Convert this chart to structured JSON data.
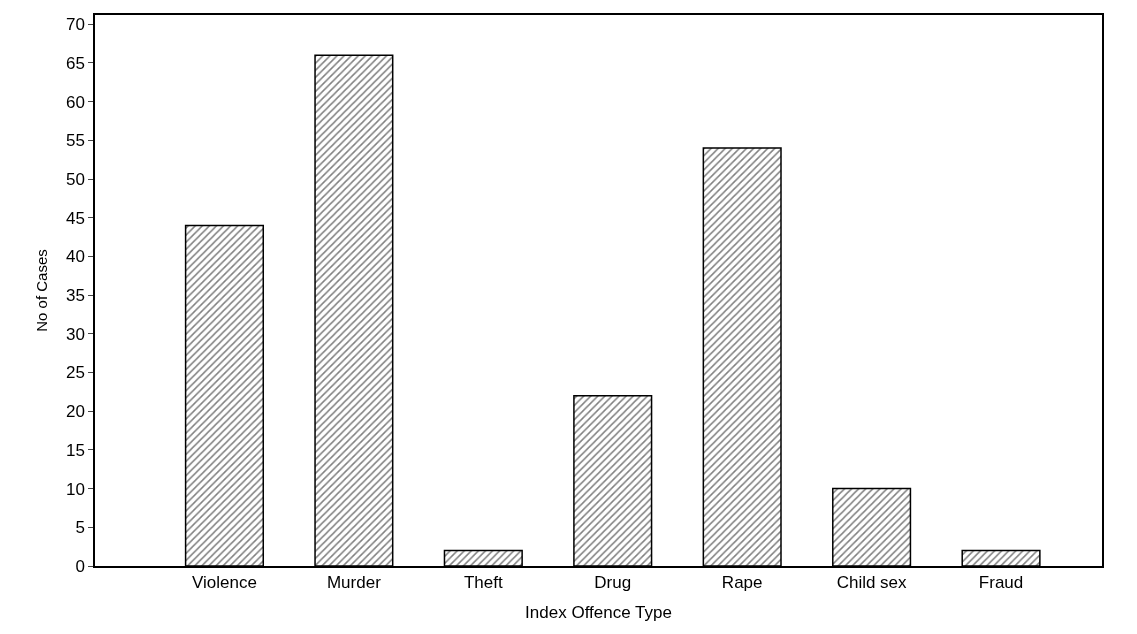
{
  "chart_data": {
    "type": "bar",
    "xlabel": "Index Offence Type",
    "ylabel": "No of Cases",
    "categories": [
      "Violence",
      "Murder",
      "Theft",
      "Drug",
      "Rape",
      "Child sex",
      "Fraud"
    ],
    "values": [
      44,
      66,
      2,
      22,
      54,
      10,
      2
    ],
    "color": "#000000",
    "ylim": [
      0,
      71.2
    ],
    "yticks": [
      0,
      5,
      10,
      15,
      20,
      25,
      30,
      35,
      40,
      45,
      50,
      55,
      60,
      65,
      70
    ]
  }
}
